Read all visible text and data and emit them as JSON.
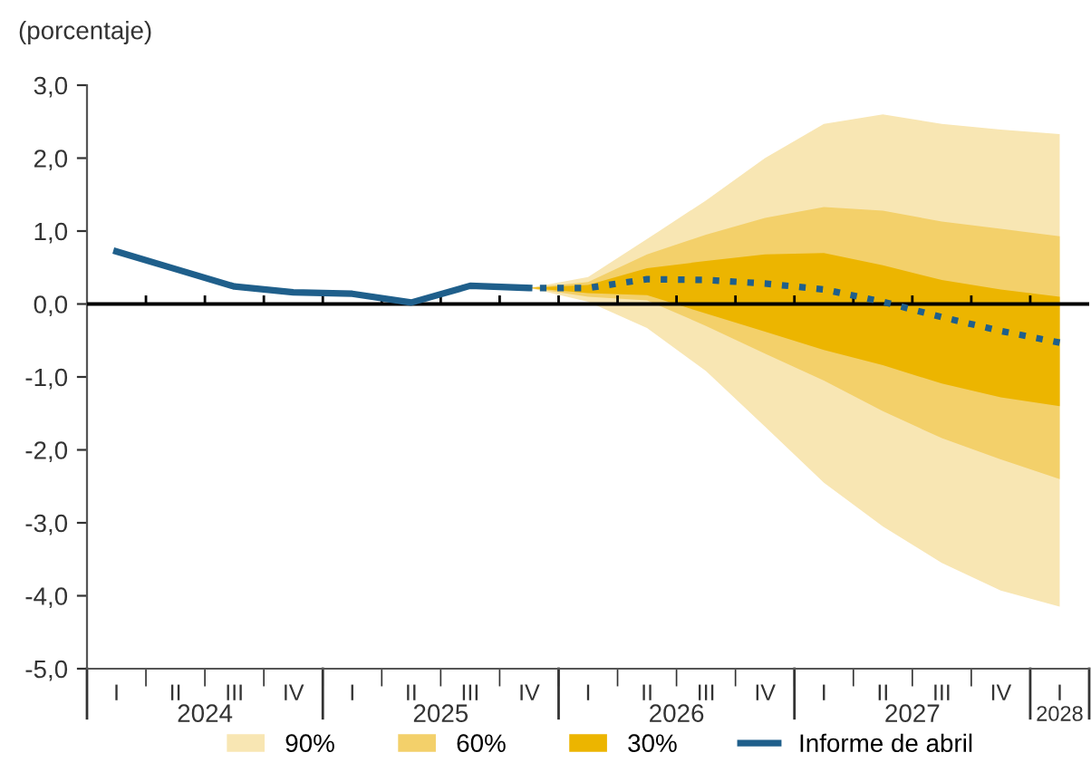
{
  "chart_data": {
    "type": "line",
    "ylabel": "(porcentaje)",
    "categories": [
      "I",
      "II",
      "III",
      "IV",
      "I",
      "II",
      "III",
      "IV",
      "I",
      "II",
      "III",
      "IV",
      "I",
      "II",
      "III",
      "IV",
      "I"
    ],
    "annotations": [
      "2024",
      "2025",
      "2026",
      "2027",
      "2028"
    ],
    "series": [
      {
        "name": "90%",
        "type": "area",
        "color": "#f8e6b3",
        "values": [
          null,
          null,
          null,
          null,
          null,
          null,
          null,
          null,
          null,
          null,
          null,
          null,
          null,
          null,
          null,
          null,
          null
        ],
        "upper": [
          null,
          null,
          null,
          null,
          null,
          null,
          null,
          0.22,
          0.37,
          0.89,
          1.42,
          2.0,
          2.47,
          2.6,
          2.47,
          2.39,
          2.33
        ],
        "lower": [
          null,
          null,
          null,
          null,
          null,
          null,
          null,
          0.22,
          0.03,
          -0.33,
          -0.92,
          -1.68,
          -2.45,
          -3.05,
          -3.55,
          -3.93,
          -4.15
        ]
      },
      {
        "name": "60%",
        "type": "area",
        "color": "#f3d06a",
        "values": [
          null,
          null,
          null,
          null,
          null,
          null,
          null,
          null,
          null,
          null,
          null,
          null,
          null,
          null,
          null,
          null,
          null
        ],
        "upper": [
          null,
          null,
          null,
          null,
          null,
          null,
          null,
          0.22,
          0.3,
          0.68,
          0.95,
          1.18,
          1.33,
          1.28,
          1.13,
          1.03,
          0.93
        ],
        "lower": [
          null,
          null,
          null,
          null,
          null,
          null,
          null,
          0.22,
          0.1,
          0.05,
          -0.3,
          -0.68,
          -1.05,
          -1.47,
          -1.84,
          -2.13,
          -2.4
        ]
      },
      {
        "name": "30%",
        "type": "area",
        "color": "#ecb500",
        "values": [
          null,
          null,
          null,
          null,
          null,
          null,
          null,
          null,
          null,
          null,
          null,
          null,
          null,
          null,
          null,
          null,
          null
        ],
        "upper": [
          null,
          null,
          null,
          null,
          null,
          null,
          null,
          0.22,
          0.26,
          0.49,
          0.59,
          0.68,
          0.7,
          0.53,
          0.33,
          0.2,
          0.1
        ],
        "lower": [
          null,
          null,
          null,
          null,
          null,
          null,
          null,
          0.22,
          0.15,
          0.12,
          -0.13,
          -0.38,
          -0.63,
          -0.84,
          -1.09,
          -1.28,
          -1.4
        ]
      },
      {
        "name": "Informe de abril",
        "color": "#1f5f8b",
        "line_style": "solid",
        "values": [
          0.72,
          0.48,
          0.24,
          0.16,
          0.14,
          0.02,
          0.25,
          0.22,
          null,
          null,
          null,
          null,
          null,
          null,
          null,
          null,
          null
        ]
      },
      {
        "type": "line",
        "color": "#1f5f8b",
        "line_style": "dotted",
        "values": [
          null,
          null,
          null,
          null,
          null,
          null,
          null,
          0.22,
          0.22,
          0.34,
          0.33,
          0.28,
          0.2,
          0.03,
          -0.18,
          -0.37,
          -0.53
        ]
      }
    ],
    "ylim": [
      -5,
      3
    ],
    "yticks": [
      {
        "value": 3,
        "label": "3,0"
      },
      {
        "value": 2,
        "label": "2,0"
      },
      {
        "value": 1,
        "label": "1,0"
      },
      {
        "value": 0,
        "label": "0,0"
      },
      {
        "value": -1,
        "label": "-1,0"
      },
      {
        "value": -2,
        "label": "-2,0"
      },
      {
        "value": -3,
        "label": "-3,0"
      },
      {
        "value": -4,
        "label": "-4,0"
      },
      {
        "value": -5,
        "label": "-5,0"
      }
    ],
    "ref_lines": [
      {
        "axis": "y",
        "value": 0,
        "color": "#000000",
        "line_style": "solid"
      }
    ],
    "legend": "bottom",
    "grid": false
  }
}
